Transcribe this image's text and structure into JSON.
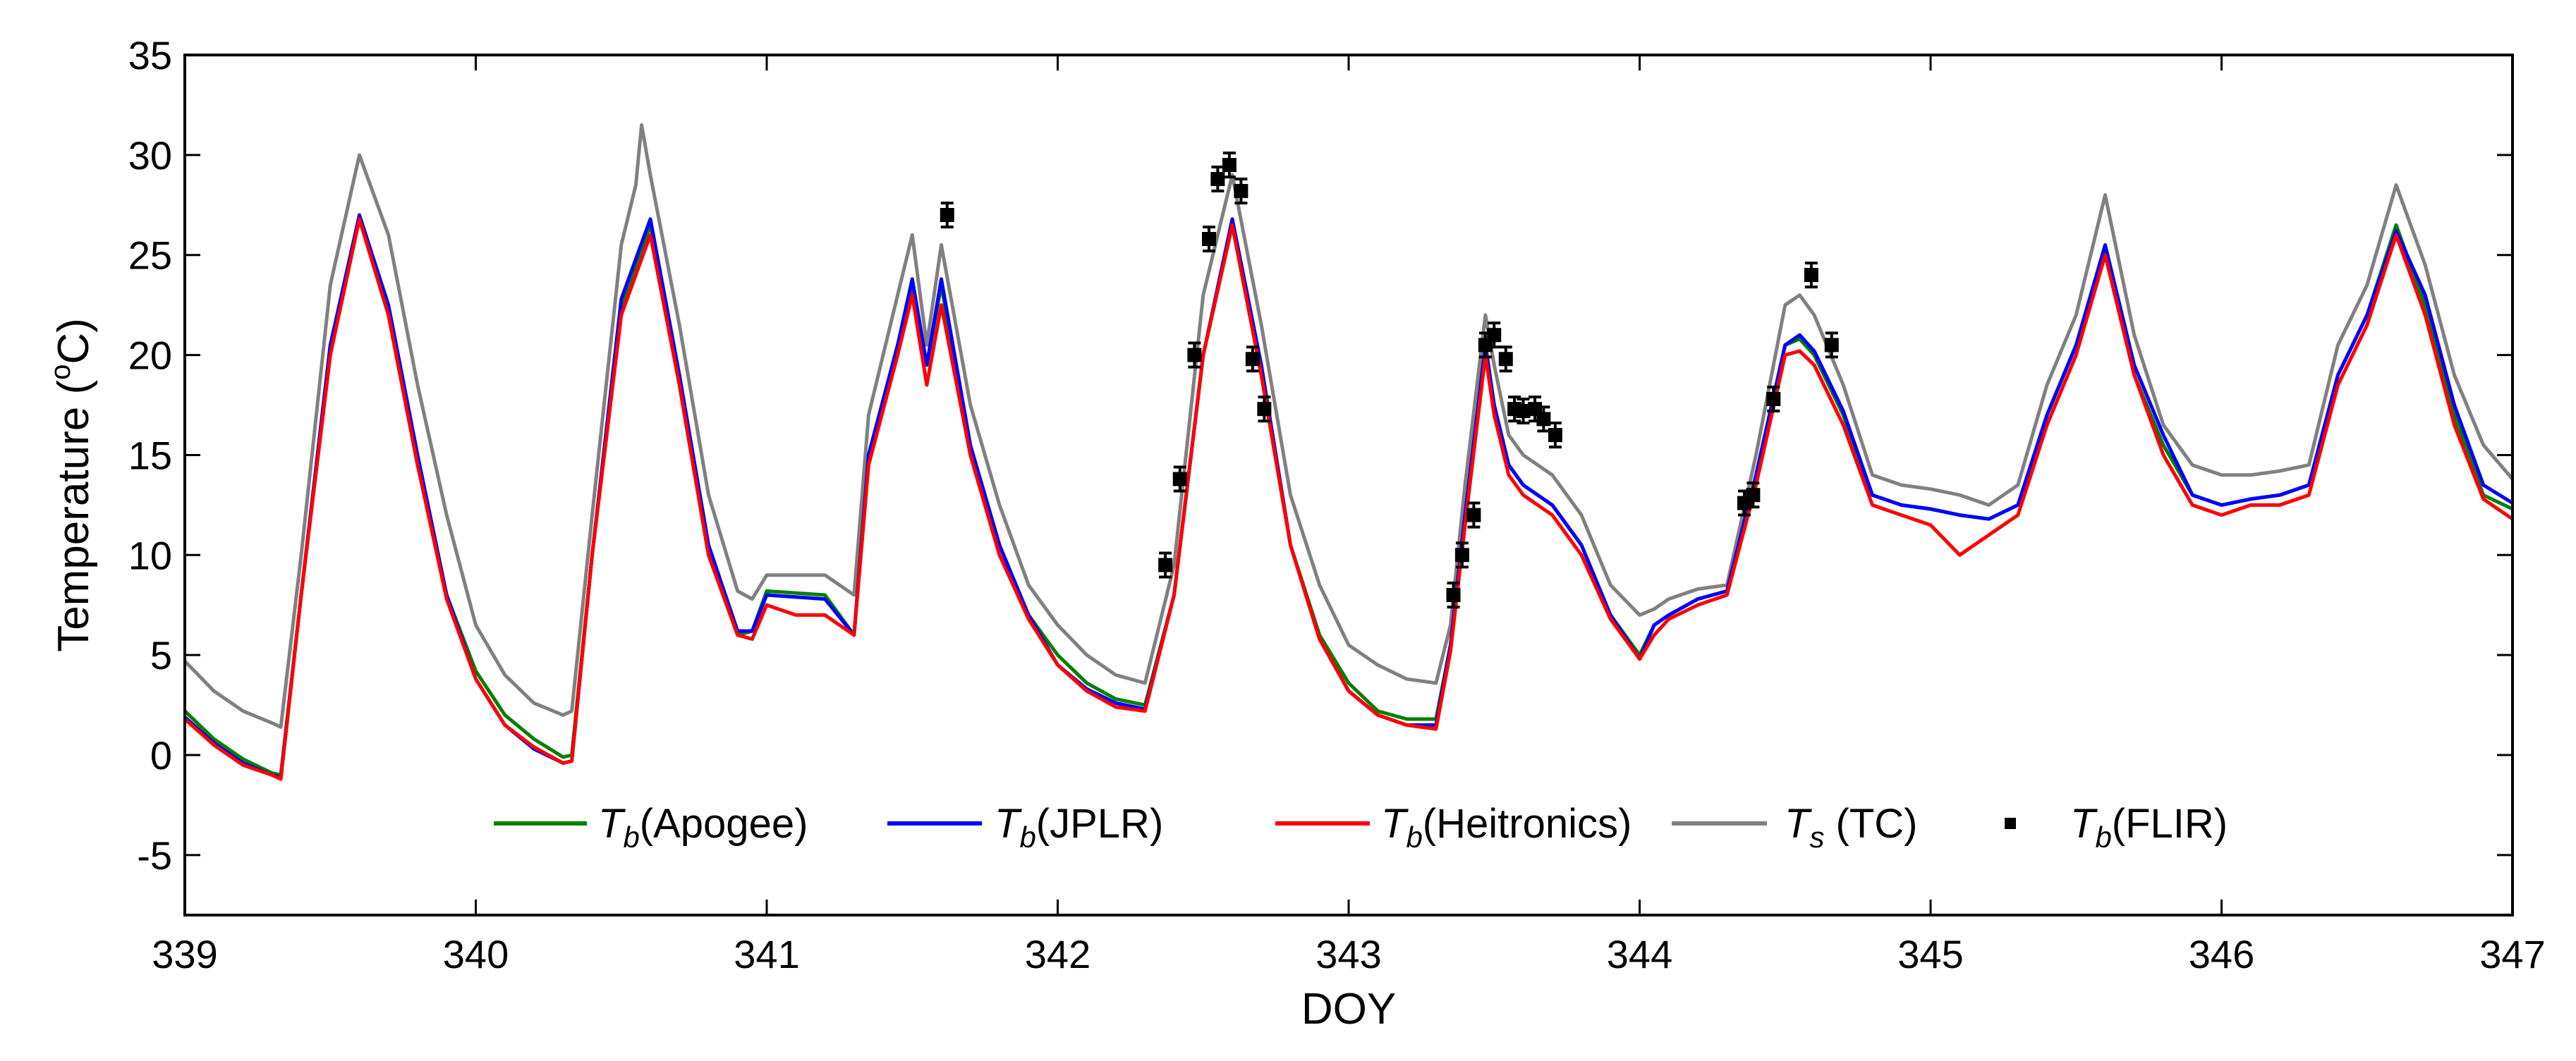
{
  "chart_data": {
    "type": "line",
    "title": "",
    "xlabel": "DOY",
    "ylabel": {
      "prefix": "Temperature (",
      "sup": "o",
      "unit": "C)"
    },
    "xlim": [
      339,
      347
    ],
    "ylim": [
      -8,
      35
    ],
    "xticks": [
      339,
      340,
      341,
      342,
      343,
      344,
      345,
      346,
      347
    ],
    "yticks": [
      -5,
      0,
      5,
      10,
      15,
      20,
      25,
      30,
      35
    ],
    "grid": false,
    "legend_position": "bottom-center",
    "series": [
      {
        "name": "Tb(Apogee)",
        "symbol": "T",
        "subscript": "b",
        "label": "(Apogee)",
        "color": "#008000",
        "style": "line",
        "x": [
          339.0,
          339.1,
          339.2,
          339.3,
          339.33,
          339.4,
          339.5,
          339.6,
          339.7,
          339.8,
          339.9,
          340.0,
          340.1,
          340.2,
          340.3,
          340.33,
          340.4,
          340.5,
          340.6,
          340.7,
          340.8,
          340.9,
          340.95,
          341.0,
          341.2,
          341.3,
          341.35,
          341.45,
          341.5,
          341.55,
          341.6,
          341.7,
          341.8,
          341.9,
          342.0,
          342.1,
          342.2,
          342.3,
          342.4,
          342.5,
          342.6,
          342.7,
          342.8,
          342.9,
          343.0,
          343.1,
          343.2,
          343.3,
          343.35,
          343.4,
          343.47,
          343.5,
          343.55,
          343.6,
          343.7,
          343.8,
          343.9,
          344.0,
          344.05,
          344.1,
          344.2,
          344.3,
          344.4,
          344.5,
          344.55,
          344.6,
          344.7,
          344.8,
          344.9,
          345.0,
          345.1,
          345.2,
          345.3,
          345.4,
          345.5,
          345.6,
          345.7,
          345.8,
          345.9,
          346.0,
          346.1,
          346.2,
          346.3,
          346.4,
          346.5,
          346.6,
          346.7,
          346.8,
          346.9,
          347.0
        ],
        "y": [
          2.2,
          0.8,
          -0.2,
          -0.9,
          -1.0,
          8.0,
          20.5,
          26.8,
          22.0,
          14.5,
          8.0,
          4.2,
          2.0,
          0.8,
          -0.1,
          0.0,
          10.0,
          22.5,
          26.5,
          18.5,
          10.0,
          6.0,
          6.2,
          8.2,
          8.0,
          6.0,
          15.0,
          20.5,
          23.5,
          19.5,
          23.5,
          15.0,
          10.0,
          7.0,
          5.0,
          3.6,
          2.8,
          2.5,
          8.0,
          20.0,
          26.5,
          19.0,
          10.5,
          6.0,
          3.6,
          2.2,
          1.8,
          1.8,
          5.5,
          12.0,
          20.5,
          17.5,
          14.5,
          13.5,
          12.5,
          10.5,
          7.0,
          5.0,
          6.5,
          7.0,
          7.8,
          8.2,
          14.0,
          20.5,
          20.8,
          20.0,
          17.0,
          13.0,
          12.5,
          12.3,
          12.0,
          11.8,
          12.5,
          17.0,
          20.5,
          25.2,
          19.0,
          15.5,
          13.0,
          12.5,
          12.8,
          13.0,
          13.5,
          19.0,
          22.0,
          26.5,
          22.5,
          17.0,
          13.0,
          12.3
        ]
      },
      {
        "name": "Tb(JPLR)",
        "symbol": "T",
        "subscript": "b",
        "label": "(JPLR)",
        "color": "#0000ff",
        "style": "line",
        "x": [
          339.0,
          339.1,
          339.2,
          339.3,
          339.33,
          339.4,
          339.5,
          339.6,
          339.7,
          339.8,
          339.9,
          340.0,
          340.1,
          340.2,
          340.3,
          340.33,
          340.4,
          340.5,
          340.6,
          340.7,
          340.8,
          340.9,
          340.95,
          341.0,
          341.2,
          341.3,
          341.35,
          341.45,
          341.5,
          341.55,
          341.6,
          341.7,
          341.8,
          341.9,
          342.0,
          342.1,
          342.2,
          342.3,
          342.4,
          342.5,
          342.6,
          342.7,
          342.8,
          342.9,
          343.0,
          343.1,
          343.2,
          343.3,
          343.35,
          343.4,
          343.47,
          343.5,
          343.55,
          343.6,
          343.7,
          343.8,
          343.9,
          344.0,
          344.05,
          344.1,
          344.2,
          344.3,
          344.4,
          344.5,
          344.55,
          344.6,
          344.7,
          344.8,
          344.9,
          345.0,
          345.1,
          345.2,
          345.3,
          345.4,
          345.5,
          345.6,
          345.7,
          345.8,
          345.9,
          346.0,
          346.1,
          346.2,
          346.3,
          346.4,
          346.5,
          346.6,
          346.7,
          346.8,
          346.9,
          347.0
        ],
        "y": [
          1.9,
          0.6,
          -0.4,
          -1.0,
          -1.1,
          8.0,
          20.5,
          27.0,
          22.5,
          15.0,
          8.0,
          3.8,
          1.5,
          0.3,
          -0.4,
          -0.3,
          10.0,
          22.8,
          26.8,
          19.0,
          10.5,
          6.2,
          6.2,
          8.0,
          7.8,
          6.0,
          15.0,
          20.5,
          23.8,
          19.5,
          23.8,
          15.5,
          10.5,
          7.0,
          4.5,
          3.3,
          2.6,
          2.3,
          8.0,
          20.0,
          26.8,
          19.5,
          10.5,
          5.8,
          3.2,
          2.0,
          1.5,
          1.5,
          5.5,
          12.0,
          20.5,
          17.5,
          14.5,
          13.5,
          12.5,
          10.5,
          7.0,
          4.8,
          6.5,
          7.0,
          7.8,
          8.2,
          14.0,
          20.5,
          21.0,
          20.2,
          17.2,
          13.0,
          12.5,
          12.3,
          12.0,
          11.8,
          12.5,
          17.0,
          20.5,
          25.5,
          19.5,
          16.0,
          13.0,
          12.5,
          12.8,
          13.0,
          13.5,
          19.0,
          22.0,
          26.2,
          23.0,
          17.5,
          13.5,
          12.6
        ]
      },
      {
        "name": "Tb(Heitronics)",
        "symbol": "T",
        "subscript": "b",
        "label": "(Heitronics)",
        "color": "#ff0000",
        "style": "line",
        "x": [
          339.0,
          339.1,
          339.2,
          339.3,
          339.33,
          339.4,
          339.5,
          339.6,
          339.7,
          339.8,
          339.9,
          340.0,
          340.1,
          340.2,
          340.3,
          340.33,
          340.4,
          340.5,
          340.6,
          340.7,
          340.8,
          340.9,
          340.95,
          341.0,
          341.1,
          341.2,
          341.3,
          341.35,
          341.45,
          341.5,
          341.55,
          341.6,
          341.7,
          341.8,
          341.9,
          342.0,
          342.1,
          342.2,
          342.3,
          342.4,
          342.5,
          342.6,
          342.7,
          342.8,
          342.9,
          343.0,
          343.1,
          343.2,
          343.3,
          343.35,
          343.4,
          343.47,
          343.5,
          343.55,
          343.6,
          343.7,
          343.8,
          343.9,
          344.0,
          344.05,
          344.1,
          344.2,
          344.3,
          344.4,
          344.5,
          344.55,
          344.6,
          344.7,
          344.8,
          344.9,
          345.0,
          345.1,
          345.15,
          345.2,
          345.3,
          345.4,
          345.5,
          345.6,
          345.7,
          345.8,
          345.9,
          346.0,
          346.1,
          346.2,
          346.3,
          346.4,
          346.5,
          346.6,
          346.7,
          346.8,
          346.9,
          347.0
        ],
        "y": [
          1.8,
          0.5,
          -0.5,
          -1.0,
          -1.2,
          8.0,
          20.0,
          26.8,
          22.0,
          14.5,
          7.8,
          3.8,
          1.5,
          0.4,
          -0.4,
          -0.3,
          10.0,
          22.0,
          26.0,
          18.5,
          10.0,
          6.0,
          5.8,
          7.5,
          7.0,
          7.0,
          6.0,
          14.5,
          20.0,
          23.0,
          18.5,
          22.5,
          15.0,
          10.0,
          6.8,
          4.5,
          3.2,
          2.4,
          2.2,
          8.0,
          20.0,
          26.5,
          19.0,
          10.5,
          5.8,
          3.2,
          2.0,
          1.5,
          1.3,
          5.2,
          11.5,
          20.0,
          17.0,
          14.0,
          13.0,
          12.0,
          10.0,
          6.8,
          4.8,
          6.0,
          6.8,
          7.5,
          8.0,
          13.5,
          20.0,
          20.2,
          19.5,
          16.5,
          12.5,
          12.0,
          11.5,
          10.0,
          10.5,
          11.0,
          12.0,
          16.5,
          20.0,
          25.0,
          19.0,
          15.0,
          12.5,
          12.0,
          12.5,
          12.5,
          13.0,
          18.5,
          21.5,
          26.0,
          22.0,
          16.5,
          12.8,
          11.8
        ]
      },
      {
        "name": "Ts (TC)",
        "symbol": "T",
        "subscript": "s",
        "label": " (TC)",
        "color": "#808080",
        "style": "line",
        "x": [
          339.0,
          339.1,
          339.2,
          339.3,
          339.33,
          339.4,
          339.5,
          339.6,
          339.7,
          339.8,
          339.9,
          340.0,
          340.1,
          340.2,
          340.3,
          340.33,
          340.4,
          340.5,
          340.55,
          340.57,
          340.6,
          340.7,
          340.8,
          340.9,
          340.95,
          341.0,
          341.2,
          341.3,
          341.35,
          341.45,
          341.5,
          341.55,
          341.6,
          341.7,
          341.8,
          341.9,
          342.0,
          342.1,
          342.2,
          342.3,
          342.4,
          342.5,
          342.6,
          342.7,
          342.8,
          342.9,
          343.0,
          343.1,
          343.2,
          343.3,
          343.35,
          343.4,
          343.47,
          343.5,
          343.55,
          343.6,
          343.7,
          343.8,
          343.9,
          344.0,
          344.05,
          344.1,
          344.2,
          344.3,
          344.4,
          344.5,
          344.55,
          344.6,
          344.7,
          344.8,
          344.9,
          345.0,
          345.1,
          345.2,
          345.3,
          345.4,
          345.5,
          345.6,
          345.7,
          345.8,
          345.9,
          346.0,
          346.1,
          346.2,
          346.3,
          346.4,
          346.5,
          346.6,
          346.7,
          346.8,
          346.9,
          347.0
        ],
        "y": [
          4.7,
          3.2,
          2.2,
          1.6,
          1.4,
          10.0,
          23.5,
          30.0,
          26.0,
          18.5,
          12.0,
          6.5,
          4.0,
          2.6,
          2.0,
          2.2,
          12.0,
          25.5,
          28.5,
          31.5,
          29.0,
          21.5,
          13.0,
          8.2,
          7.8,
          9.0,
          9.0,
          8.0,
          17.0,
          23.0,
          26.0,
          20.5,
          25.5,
          17.5,
          12.5,
          8.5,
          6.5,
          5.0,
          4.0,
          3.6,
          9.5,
          23.0,
          29.0,
          21.5,
          13.0,
          8.5,
          5.5,
          4.5,
          3.8,
          3.6,
          6.5,
          13.5,
          22.0,
          19.5,
          16.0,
          15.0,
          14.0,
          12.0,
          8.5,
          7.0,
          7.3,
          7.8,
          8.3,
          8.5,
          15.0,
          22.5,
          23.0,
          22.0,
          18.5,
          14.0,
          13.5,
          13.3,
          13.0,
          12.5,
          13.5,
          18.5,
          22.0,
          28.0,
          21.0,
          16.5,
          14.5,
          14.0,
          14.0,
          14.2,
          14.5,
          20.5,
          23.5,
          28.5,
          24.5,
          19.0,
          15.5,
          13.8
        ]
      },
      {
        "name": "Tb(FLIR)",
        "symbol": "T",
        "subscript": "b",
        "label": "(FLIR)",
        "color": "#000000",
        "style": "markers-errorbars",
        "x": [
          341.62,
          342.37,
          342.42,
          342.47,
          342.52,
          342.55,
          342.59,
          342.63,
          342.67,
          342.71,
          343.36,
          343.39,
          343.43,
          343.47,
          343.5,
          343.54,
          343.57,
          343.6,
          343.64,
          343.67,
          343.71,
          344.36,
          344.39,
          344.46,
          344.59,
          344.66
        ],
        "y": [
          27.0,
          9.5,
          13.8,
          20.0,
          25.8,
          28.8,
          29.5,
          28.2,
          19.8,
          17.3,
          8.0,
          10.0,
          12.0,
          20.5,
          21.0,
          19.8,
          17.3,
          17.2,
          17.3,
          16.8,
          16.0,
          12.6,
          13.0,
          17.8,
          24.0,
          20.5
        ],
        "error": 0.6
      }
    ]
  }
}
